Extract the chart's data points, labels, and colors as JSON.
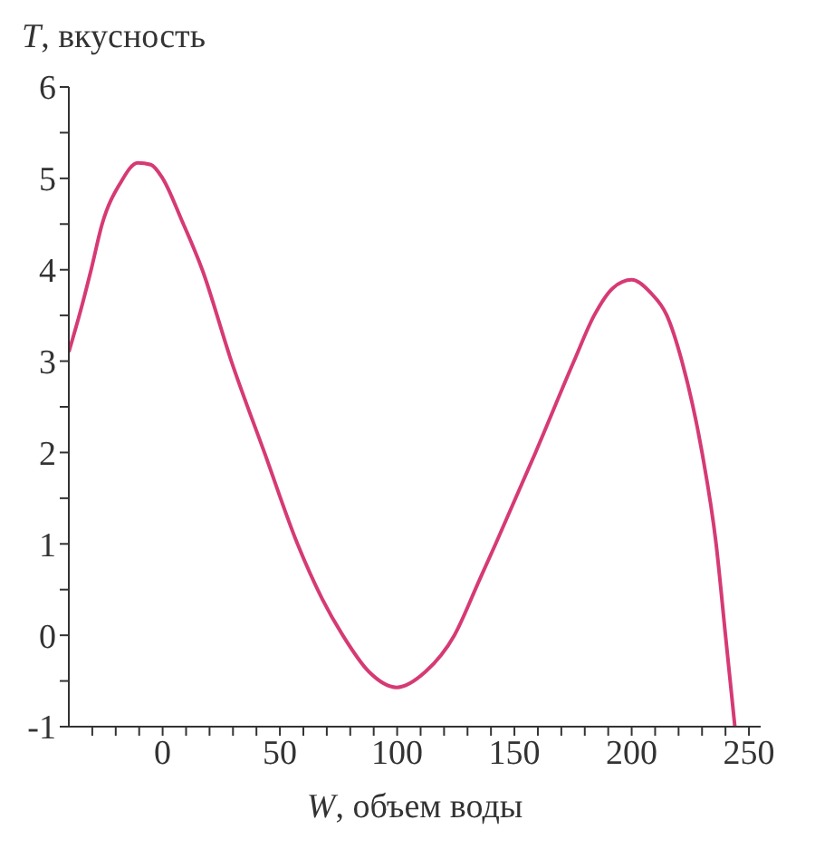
{
  "chart_data": {
    "type": "line",
    "xlabel": "W, объем воды",
    "ylabel": "T, вкусность",
    "x": [
      -40,
      -35,
      -30.5,
      -25.8,
      -18,
      -10.6,
      -5,
      0,
      8,
      16.9,
      29.3,
      43.4,
      57.5,
      68,
      76.8,
      88,
      99.8,
      112,
      124.4,
      135,
      142,
      159,
      175.4,
      184,
      192,
      200,
      208,
      215,
      221.4,
      230,
      236,
      240,
      244
    ],
    "series": [
      {
        "color": "#d63a74",
        "values": [
          3.1,
          3.55,
          4,
          4.5,
          4.95,
          5.17,
          5.15,
          5,
          4.55,
          4,
          3,
          2,
          1,
          0.4,
          0,
          -0.4,
          -0.57,
          -0.4,
          0,
          0.6,
          1,
          2,
          3,
          3.5,
          3.8,
          3.89,
          3.75,
          3.5,
          3,
          2,
          1,
          0,
          -1
        ]
      }
    ],
    "xlim": [
      -40,
      255
    ],
    "xticks": [
      {
        "value": -30,
        "label": null
      },
      {
        "value": -20,
        "label": null
      },
      {
        "value": -10,
        "label": null
      },
      0,
      {
        "value": 10,
        "label": null
      },
      {
        "value": 20,
        "label": null
      },
      {
        "value": 30,
        "label": null
      },
      {
        "value": 40,
        "label": null
      },
      50,
      {
        "value": 60,
        "label": null
      },
      {
        "value": 70,
        "label": null
      },
      {
        "value": 80,
        "label": null
      },
      {
        "value": 90,
        "label": null
      },
      100,
      {
        "value": 110,
        "label": null
      },
      {
        "value": 120,
        "label": null
      },
      {
        "value": 130,
        "label": null
      },
      {
        "value": 140,
        "label": null
      },
      150,
      {
        "value": 160,
        "label": null
      },
      {
        "value": 170,
        "label": null
      },
      {
        "value": 180,
        "label": null
      },
      {
        "value": 190,
        "label": null
      },
      200,
      {
        "value": 210,
        "label": null
      },
      {
        "value": 220,
        "label": null
      },
      {
        "value": 230,
        "label": null
      },
      {
        "value": 240,
        "label": null
      },
      250
    ],
    "ylim": [
      -1,
      6
    ],
    "yticks": [
      -1,
      {
        "value": -0.5,
        "label": null
      },
      0,
      {
        "value": 0.5,
        "label": null
      },
      1,
      {
        "value": 1.5,
        "label": null
      },
      2,
      {
        "value": 2.5,
        "label": null
      },
      3,
      {
        "value": 3.5,
        "label": null
      },
      4,
      {
        "value": 4.5,
        "label": null
      },
      5,
      {
        "value": 5.5,
        "label": null
      },
      6
    ],
    "grid": false,
    "marker": "none",
    "line_style": "solid",
    "legend": false
  }
}
